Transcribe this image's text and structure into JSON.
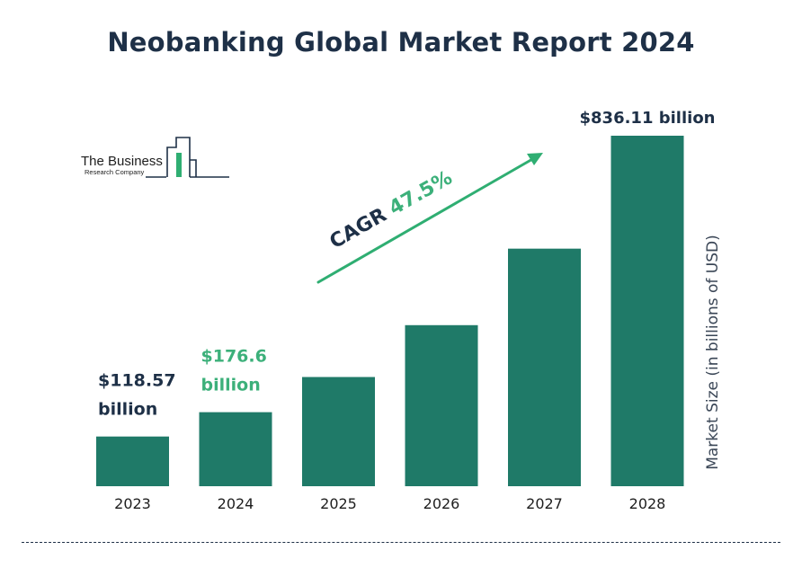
{
  "logo": {
    "line1": "The Business",
    "line2": "Research Company"
  },
  "chart_data": {
    "type": "bar",
    "title": "Neobanking Global Market Report 2024",
    "categories": [
      "2023",
      "2024",
      "2025",
      "2026",
      "2027",
      "2028"
    ],
    "values": [
      118.57,
      176.6,
      260.5,
      384.2,
      566.7,
      836.11
    ],
    "value_labels": [
      [
        "$118.57",
        "billion"
      ],
      [
        "$176.6",
        "billion"
      ],
      null,
      null,
      null,
      [
        "$836.11 billion"
      ]
    ],
    "ylabel": "Market Size (in billions of USD)",
    "ylim": [
      0,
      836.11
    ],
    "grid": false,
    "annotation": {
      "prefix": "CAGR",
      "value": "47.5%"
    },
    "colors": {
      "bar": "#1f7a68",
      "highlight_label": "#3cb07a",
      "text_dark": "#1e3047",
      "axis_text": "#1e1e1e",
      "arrow": "#2fae72"
    }
  }
}
